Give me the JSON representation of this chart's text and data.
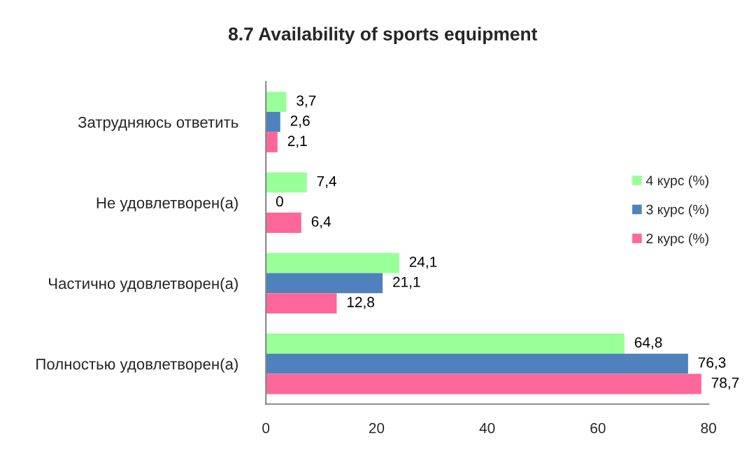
{
  "chart_data": {
    "type": "bar",
    "orientation": "horizontal",
    "title": "8.7 Availability of sports equipment",
    "categories": [
      "Затрудняюсь ответить",
      "Не удовлетворен(а)",
      "Частично удовлетворен(а)",
      "Полностью удовлетворен(а)"
    ],
    "series": [
      {
        "name": "4 курс (%)",
        "color": "#99ff99",
        "values": [
          3.7,
          7.4,
          24.1,
          64.8
        ],
        "value_labels": [
          "3,7",
          "7,4",
          "24,1",
          "64,8"
        ]
      },
      {
        "name": "3 курс (%)",
        "color": "#4f81bd",
        "values": [
          2.6,
          0,
          21.1,
          76.3
        ],
        "value_labels": [
          "2,6",
          "0",
          "21,1",
          "76,3"
        ]
      },
      {
        "name": "2 курс (%)",
        "color": "#ff6699",
        "values": [
          2.1,
          6.4,
          12.8,
          78.7
        ],
        "value_labels": [
          "2,1",
          "6,4",
          "12,8",
          "78,7"
        ]
      }
    ],
    "xlim": [
      0,
      80
    ],
    "xticks": [
      0,
      20,
      40,
      60,
      80
    ],
    "grid": false,
    "legend": "right"
  }
}
